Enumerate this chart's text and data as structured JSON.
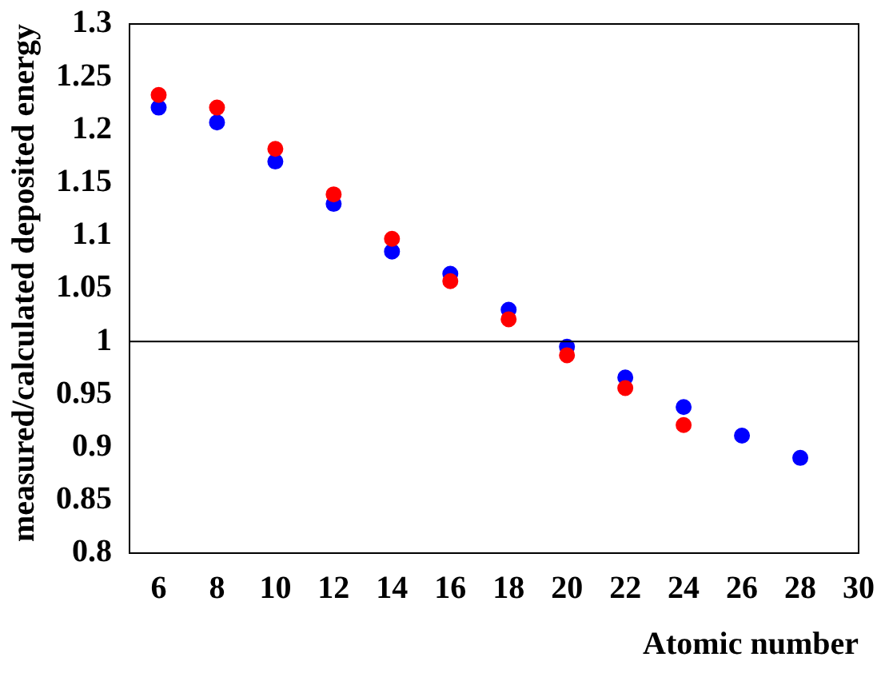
{
  "chart_data": {
    "type": "scatter",
    "xlabel": "Atomic number",
    "ylabel": "measured/calculated deposited energy",
    "xlim": [
      5,
      30
    ],
    "xticks": [
      6,
      8,
      10,
      12,
      14,
      16,
      18,
      20,
      22,
      24,
      26,
      28,
      30
    ],
    "ylim": [
      0.8,
      1.3
    ],
    "yticks": [
      0.8,
      0.85,
      0.9,
      0.95,
      1,
      1.05,
      1.1,
      1.15,
      1.2,
      1.25,
      1.3
    ],
    "grid": false,
    "legend": false,
    "marker": "circle",
    "ref_lines": [
      {
        "axis": "y",
        "value": 1,
        "color": "#000000"
      }
    ],
    "series": [
      {
        "color": "#ff0000",
        "x": [
          6,
          8,
          10,
          12,
          14,
          16,
          18,
          20,
          22,
          24
        ],
        "values": [
          1.233,
          1.221,
          1.182,
          1.139,
          1.097,
          1.057,
          1.021,
          0.987,
          0.956,
          0.921
        ]
      },
      {
        "color": "#0000ff",
        "x": [
          6,
          8,
          10,
          12,
          14,
          16,
          18,
          20,
          22,
          24,
          26,
          28
        ],
        "values": [
          1.221,
          1.207,
          1.17,
          1.13,
          1.085,
          1.064,
          1.03,
          0.995,
          0.966,
          0.938,
          0.911,
          0.89
        ]
      }
    ]
  }
}
